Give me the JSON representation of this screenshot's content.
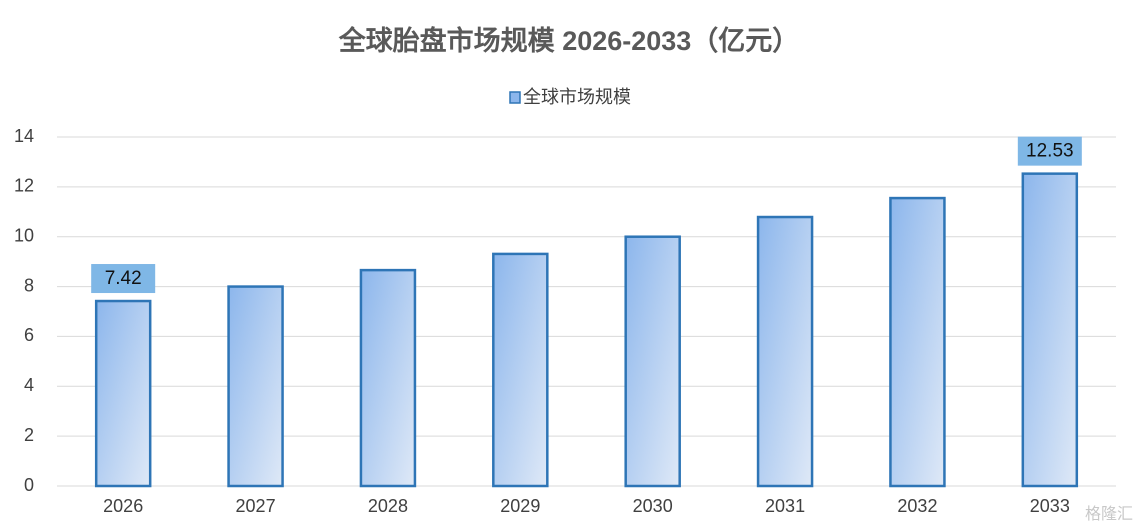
{
  "chart_data": {
    "type": "bar",
    "title": "全球胎盘市场规模 2026-2033（亿元）",
    "categories": [
      "2026",
      "2027",
      "2028",
      "2029",
      "2030",
      "2031",
      "2032",
      "2033"
    ],
    "series": [
      {
        "name": "全球市场规模",
        "color": "#2e75b6",
        "values": [
          7.42,
          8.0,
          8.66,
          9.31,
          10.0,
          10.79,
          11.55,
          12.53
        ],
        "value_labels": [
          "7.42",
          null,
          null,
          null,
          null,
          null,
          null,
          "12.53"
        ]
      }
    ],
    "ylim": [
      0,
      14
    ],
    "yticks": [
      0,
      2,
      4,
      6,
      8,
      10,
      12,
      14
    ],
    "grid": true,
    "legend": "top",
    "watermark": "格隆汇"
  }
}
